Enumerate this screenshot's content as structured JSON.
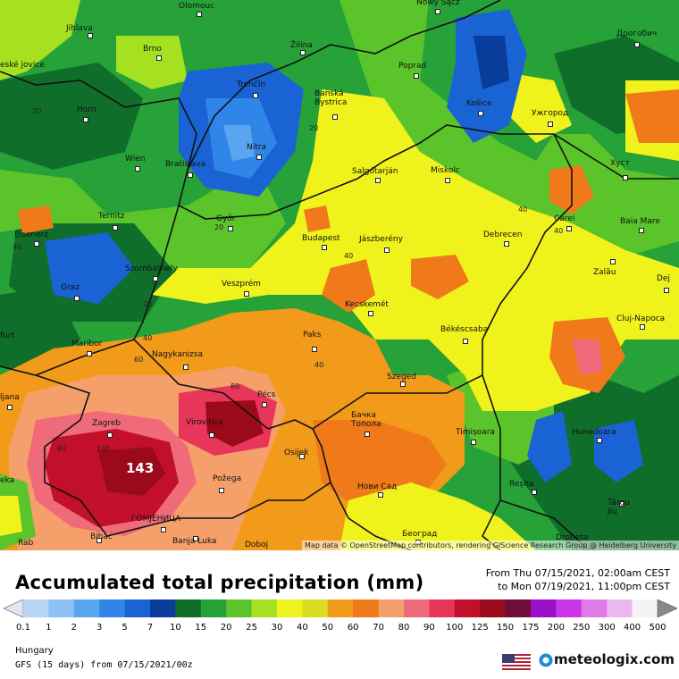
{
  "map": {
    "attribution": "Map data © OpenStreetMap contributors, rendering GIScience Research Group @ Heidelberg University",
    "max_label": "143",
    "cities": [
      "Olomouc",
      "Nowy Sącz",
      "Jihlava",
      "Brno",
      "Žilina",
      "Poprad",
      "Дрогобич",
      "eské jovice",
      "Trenčín",
      "Banská Bystrica",
      "Košice",
      "Ужгород",
      "Horn",
      "Nitra",
      "Bratislava",
      "Wien",
      "Salgótarján",
      "Miskolc",
      "Хуст",
      "Ternitz",
      "Győr",
      "Carei",
      "Baia Mare",
      "Eisenerz",
      "Budapest",
      "Jászberény",
      "Debrecen",
      "Szombathely",
      "Graz",
      "Veszprém",
      "Zalău",
      "Dej",
      "Kecskemét",
      "Cluj-Napoca",
      "furt",
      "Maribor",
      "Paks",
      "Békéscsaba",
      "Nagykanizsa",
      "Szeged",
      "ljana",
      "Pécs",
      "Zagreb",
      "Virovitica",
      "Бачка Топола",
      "Timișoara",
      "Hunedoara",
      "Osijek",
      "eka",
      "Požega",
      "Нови Сад",
      "Reșița",
      "Târgu Jiu",
      "ГОМЈЕНИЦА",
      "Rab",
      "Bihać",
      "Banja Luka",
      "Doboj",
      "Београд",
      "Drobeta"
    ],
    "contours": [
      "20",
      "20",
      "40",
      "40",
      "20",
      "40",
      "40",
      "20",
      "40",
      "60",
      "80",
      "80",
      "100",
      "40"
    ]
  },
  "header": {
    "title": "Accumulated total precipitation (mm)",
    "period_from": "From Thu 07/15/2021, 02:00am CEST",
    "period_to": "to Mon 07/19/2021, 11:00pm CEST"
  },
  "legend": {
    "ticks": [
      "0.1",
      "1",
      "2",
      "3",
      "5",
      "7",
      "10",
      "15",
      "20",
      "25",
      "30",
      "40",
      "50",
      "60",
      "70",
      "80",
      "90",
      "100",
      "125",
      "150",
      "175",
      "200",
      "250",
      "300",
      "400",
      "500"
    ],
    "colors": [
      "#e3e3f5",
      "#b8d4f7",
      "#8cc0f7",
      "#5aa5f0",
      "#2f86e8",
      "#1a63d4",
      "#0a3c9c",
      "#0f6e2a",
      "#26a238",
      "#5bc42a",
      "#a5e021",
      "#f0f21c",
      "#dcdc22",
      "#f29a1a",
      "#f07a1a",
      "#f5a06a",
      "#f06b7a",
      "#e8355a",
      "#c2102a",
      "#9a0a1a",
      "#700e3a",
      "#9a10c8",
      "#cc35e8",
      "#e07ae8",
      "#eab7ee",
      "#f7f1f8",
      "#d8d8d8"
    ]
  },
  "footer": {
    "region": "Hungary",
    "model": "GFS (15 days) from 07/15/2021/00z",
    "brand": "meteologix.com"
  }
}
